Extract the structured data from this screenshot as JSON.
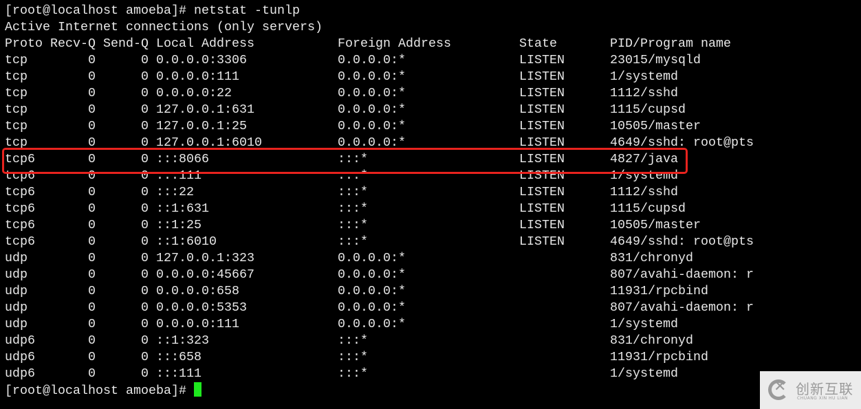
{
  "prompt_command": "[root@localhost amoeba]# netstat -tunlp",
  "heading": "Active Internet connections (only servers)",
  "columns": [
    "Proto",
    "Recv-Q",
    "Send-Q",
    "Local Address",
    "Foreign Address",
    "State",
    "PID/Program name"
  ],
  "rows": [
    [
      "tcp",
      "0",
      "0",
      "0.0.0.0:3306",
      "0.0.0.0:*",
      "LISTEN",
      "23015/mysqld"
    ],
    [
      "tcp",
      "0",
      "0",
      "0.0.0.0:111",
      "0.0.0.0:*",
      "LISTEN",
      "1/systemd"
    ],
    [
      "tcp",
      "0",
      "0",
      "0.0.0.0:22",
      "0.0.0.0:*",
      "LISTEN",
      "1112/sshd"
    ],
    [
      "tcp",
      "0",
      "0",
      "127.0.0.1:631",
      "0.0.0.0:*",
      "LISTEN",
      "1115/cupsd"
    ],
    [
      "tcp",
      "0",
      "0",
      "127.0.0.1:25",
      "0.0.0.0:*",
      "LISTEN",
      "10505/master"
    ],
    [
      "tcp",
      "0",
      "0",
      "127.0.0.1:6010",
      "0.0.0.0:*",
      "LISTEN",
      "4649/sshd: root@pts"
    ],
    [
      "tcp6",
      "0",
      "0",
      ":::8066",
      ":::*",
      "LISTEN",
      "4827/java"
    ],
    [
      "tcp6",
      "0",
      "0",
      ":::111",
      ":::*",
      "LISTEN",
      "1/systemd"
    ],
    [
      "tcp6",
      "0",
      "0",
      ":::22",
      ":::*",
      "LISTEN",
      "1112/sshd"
    ],
    [
      "tcp6",
      "0",
      "0",
      "::1:631",
      ":::*",
      "LISTEN",
      "1115/cupsd"
    ],
    [
      "tcp6",
      "0",
      "0",
      "::1:25",
      ":::*",
      "LISTEN",
      "10505/master"
    ],
    [
      "tcp6",
      "0",
      "0",
      "::1:6010",
      ":::*",
      "LISTEN",
      "4649/sshd: root@pts"
    ],
    [
      "udp",
      "0",
      "0",
      "127.0.0.1:323",
      "0.0.0.0:*",
      "",
      "831/chronyd"
    ],
    [
      "udp",
      "0",
      "0",
      "0.0.0.0:45667",
      "0.0.0.0:*",
      "",
      "807/avahi-daemon: r"
    ],
    [
      "udp",
      "0",
      "0",
      "0.0.0.0:658",
      "0.0.0.0:*",
      "",
      "11931/rpcbind"
    ],
    [
      "udp",
      "0",
      "0",
      "0.0.0.0:5353",
      "0.0.0.0:*",
      "",
      "807/avahi-daemon: r"
    ],
    [
      "udp",
      "0",
      "0",
      "0.0.0.0:111",
      "0.0.0.0:*",
      "",
      "1/systemd"
    ],
    [
      "udp6",
      "0",
      "0",
      "::1:323",
      ":::*",
      "",
      "831/chronyd"
    ],
    [
      "udp6",
      "0",
      "0",
      ":::658",
      ":::*",
      "",
      "11931/rpcbind"
    ],
    [
      "udp6",
      "0",
      "0",
      ":::111",
      ":::*",
      "",
      "1/systemd"
    ]
  ],
  "highlighted_row": 6,
  "final_prompt": "[root@localhost amoeba]# ",
  "colors": {
    "highlight": "#e8231e",
    "cursor": "#1ee81e"
  },
  "watermark": {
    "cn": "创新互联",
    "en": "CHUANG XIN HU LIAN"
  }
}
